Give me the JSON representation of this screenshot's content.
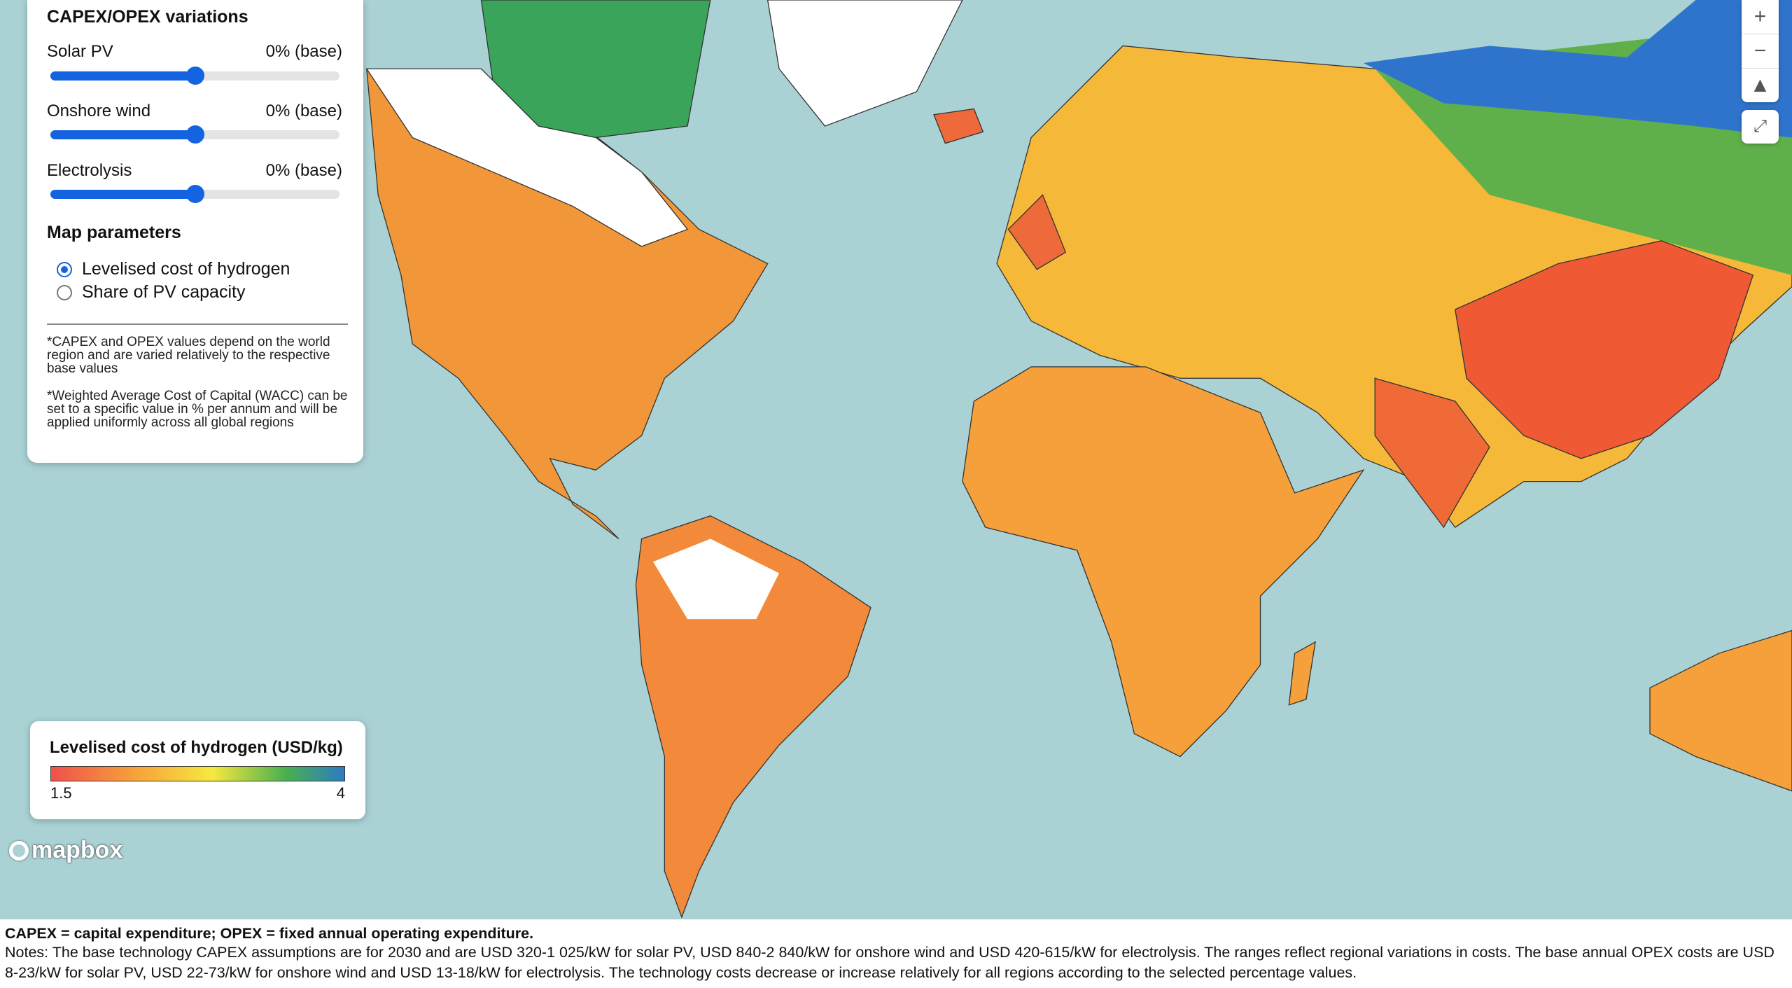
{
  "panel": {
    "title": "CAPEX/OPEX variations",
    "sliders": [
      {
        "label": "Solar PV",
        "value": "0% (base)"
      },
      {
        "label": "Onshore wind",
        "value": "0% (base)"
      },
      {
        "label": "Electrolysis",
        "value": "0% (base)"
      }
    ],
    "parameters_title": "Map parameters",
    "options": [
      "Levelised cost of hydrogen",
      "Share of PV capacity"
    ],
    "notes": [
      "*CAPEX and OPEX values depend on the world region and are varied relatively to the respective base values",
      "*Weighted Average Cost of Capital (WACC) can be set to a specific value in % per annum and will be applied uniformly across all global regions"
    ]
  },
  "legend": {
    "title": "Levelised cost of hydrogen (USD/kg)",
    "min": 1.5,
    "max": 4
  },
  "attribution": "mapbox",
  "footer": {
    "abbreviations": "CAPEX = capital expenditure; OPEX = fixed annual operating expenditure.",
    "notes": "Notes: The base technology CAPEX assumptions are for 2030 and are USD 320-1 025/kW for solar PV, USD 840-2 840/kW for onshore wind and USD 420-615/kW for electrolysis. The ranges reflect regional variations in costs. The base annual OPEX costs are USD 8-23/kW for solar PV, USD 22-73/kW for onshore wind and USD 13-18/kW for electrolysis. The technology costs decrease or increase relatively for all regions according to the selected percentage values."
  }
}
